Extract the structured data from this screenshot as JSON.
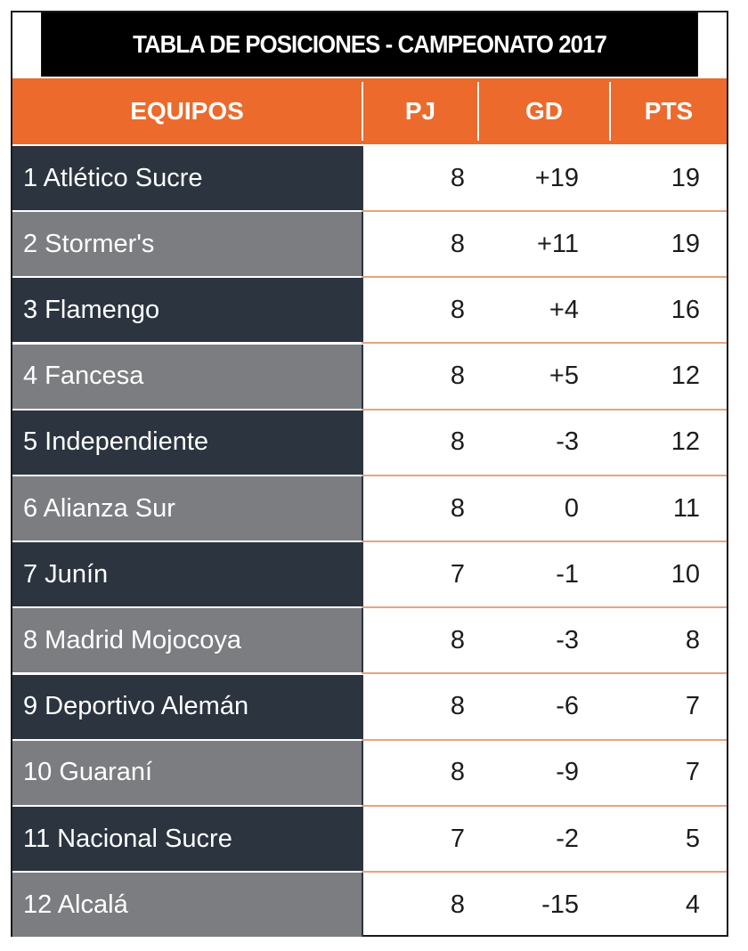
{
  "title": "TABLA DE POSICIONES - CAMPEONATO 2017",
  "colors": {
    "title_bg": "#000000",
    "header_bg": "#ec6a2b",
    "row_dark": "#2b343f",
    "row_light": "#7b7d80",
    "row_divider": "#e6a37f"
  },
  "chart_data": {
    "type": "table",
    "columns": [
      "EQUIPOS",
      "PJ",
      "GD",
      "PTS"
    ],
    "rows": [
      {
        "team": "1 Atlético Sucre",
        "pj": "8",
        "gd": "+19",
        "pts": "19"
      },
      {
        "team": "2 Stormer's",
        "pj": "8",
        "gd": "+11",
        "pts": "19"
      },
      {
        "team": "3 Flamengo",
        "pj": "8",
        "gd": "+4",
        "pts": "16"
      },
      {
        "team": "4 Fancesa",
        "pj": "8",
        "gd": "+5",
        "pts": "12"
      },
      {
        "team": "5 Independiente",
        "pj": "8",
        "gd": "-3",
        "pts": "12"
      },
      {
        "team": "6 Alianza Sur",
        "pj": "8",
        "gd": "0",
        "pts": "11"
      },
      {
        "team": "7 Junín",
        "pj": "7",
        "gd": "-1",
        "pts": "10"
      },
      {
        "team": "8 Madrid Mojocoya",
        "pj": "8",
        "gd": "-3",
        "pts": "8"
      },
      {
        "team": "9 Deportivo Alemán",
        "pj": "8",
        "gd": "-6",
        "pts": "7"
      },
      {
        "team": "10 Guaraní",
        "pj": "8",
        "gd": "-9",
        "pts": "7"
      },
      {
        "team": "11 Nacional Sucre",
        "pj": "7",
        "gd": "-2",
        "pts": "5"
      },
      {
        "team": "12 Alcalá",
        "pj": "8",
        "gd": "-15",
        "pts": "4"
      }
    ]
  }
}
